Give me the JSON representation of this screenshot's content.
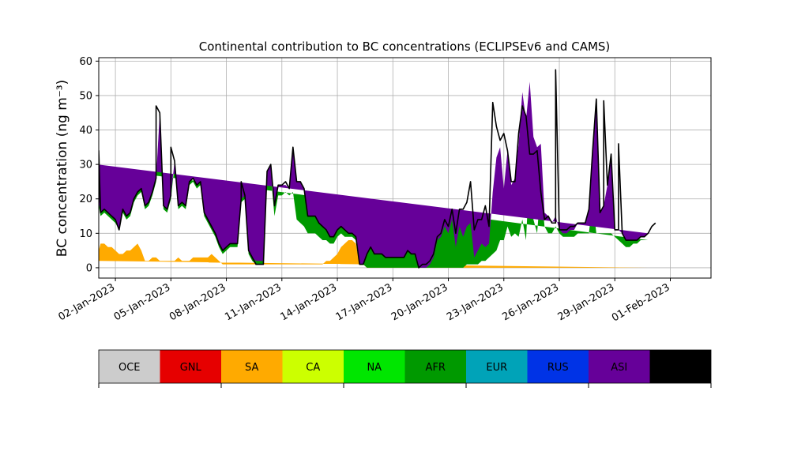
{
  "chart_data": {
    "type": "area",
    "stacked": true,
    "title": "Continental contribution to BC concentrations (ECLIPSEv6 and CAMS)",
    "ylabel": "BC concentration (ng m⁻³)",
    "xlabel": "",
    "ylim": [
      -3,
      61
    ],
    "yticks": [
      0,
      10,
      20,
      30,
      40,
      50,
      60
    ],
    "xlim_day": [
      -0.9,
      32.2
    ],
    "xtick_days": [
      0,
      3,
      6,
      9,
      12,
      15,
      18,
      21,
      24,
      27,
      30
    ],
    "xtick_labels": [
      "02-Jan-2023",
      "05-Jan-2023",
      "08-Jan-2023",
      "11-Jan-2023",
      "14-Jan-2023",
      "17-Jan-2023",
      "20-Jan-2023",
      "23-Jan-2023",
      "26-Jan-2023",
      "29-Jan-2023",
      "01-Feb-2023"
    ],
    "grid": true,
    "legend_position": "bottom",
    "legend": [
      {
        "name": "OCE",
        "color": "#cccccc"
      },
      {
        "name": "GNL",
        "color": "#e60000"
      },
      {
        "name": "SA",
        "color": "#ffaa00"
      },
      {
        "name": "CA",
        "color": "#ccff00"
      },
      {
        "name": "NA",
        "color": "#00e600"
      },
      {
        "name": "AFR",
        "color": "#009900"
      },
      {
        "name": "EUR",
        "color": "#00a3b8"
      },
      {
        "name": "RUS",
        "color": "#0033e6"
      },
      {
        "name": "ASI",
        "color": "#660099"
      },
      {
        "name": "AUS",
        "color": "#000000"
      }
    ],
    "x_day": [
      -1.0,
      -0.9,
      -0.8,
      -0.6,
      -0.4,
      -0.2,
      0.0,
      0.2,
      0.4,
      0.6,
      0.8,
      1.0,
      1.2,
      1.4,
      1.6,
      1.8,
      2.0,
      2.2,
      2.4,
      2.6,
      2.8,
      3.0,
      3.2,
      3.4,
      3.6,
      3.8,
      4.0,
      4.2,
      4.4,
      4.6,
      4.8,
      5.0,
      5.2,
      5.4,
      5.6,
      5.8,
      6.0,
      6.2,
      6.4,
      6.6,
      6.8,
      7.0,
      7.2,
      7.4,
      7.6,
      7.8,
      8.0,
      8.2,
      8.4,
      8.6,
      8.8,
      9.0,
      9.2,
      9.4,
      9.6,
      9.8,
      10.0,
      10.2,
      10.4,
      10.6,
      10.8,
      11.0,
      11.2,
      11.4,
      11.6,
      11.8,
      12.0,
      12.2,
      12.4,
      12.6,
      12.8,
      13.0,
      13.2,
      13.4,
      13.6,
      13.8,
      14.0,
      14.2,
      14.4,
      14.6,
      14.8,
      15.0,
      15.2,
      15.4,
      15.6,
      15.8,
      16.0,
      16.2,
      16.4,
      16.6,
      16.8,
      17.0,
      17.2,
      17.4,
      17.6,
      17.8,
      18.0,
      18.2,
      18.4,
      18.6,
      18.8,
      19.0,
      19.2,
      19.4,
      19.6,
      19.8,
      20.0,
      20.2,
      20.4,
      20.6,
      20.8,
      21.0,
      21.2,
      21.4,
      21.6,
      21.8,
      22.0,
      22.2,
      22.4,
      22.6,
      22.8,
      23.0,
      23.2,
      23.4,
      23.6,
      23.8,
      24.0,
      24.2,
      24.4,
      24.6,
      24.8,
      25.0,
      25.2,
      25.4,
      25.6,
      25.8,
      26.0,
      26.2,
      26.4,
      26.6,
      26.8,
      27.0,
      27.2,
      27.4,
      27.6,
      27.8,
      28.0,
      28.2,
      28.4,
      28.6,
      28.8,
      29.0,
      29.2,
      29.4,
      29.6,
      29.8,
      30.0
    ],
    "series": [
      {
        "name": "SA",
        "color": "#ffaa00",
        "values": [
          2,
          5,
          7,
          7,
          6,
          6,
          5,
          4,
          4,
          5,
          5,
          6,
          7,
          5,
          2,
          2,
          3,
          3,
          2,
          2,
          2,
          2,
          2,
          3,
          2,
          2,
          2,
          3,
          3,
          3,
          3,
          3,
          4,
          3,
          2,
          1,
          1,
          1,
          1,
          1,
          1,
          1,
          1,
          1,
          1,
          1,
          1,
          1,
          1,
          1,
          1,
          1,
          1,
          1,
          1,
          1,
          1,
          1,
          1,
          1,
          1,
          1,
          1,
          2,
          2,
          3,
          4,
          6,
          7,
          8,
          8,
          7,
          1,
          1,
          0,
          0,
          0,
          0,
          0,
          0,
          0,
          0,
          0,
          0,
          0,
          0,
          0,
          0,
          0,
          0,
          0,
          0,
          0,
          0,
          0,
          0,
          0,
          0,
          0,
          0,
          0,
          0,
          0,
          0,
          0,
          0,
          0,
          0,
          0,
          0,
          0,
          0,
          0,
          0,
          0,
          0,
          0,
          0,
          0,
          0,
          0,
          0,
          0,
          0,
          0,
          0,
          0,
          0,
          0,
          0,
          0,
          0,
          0,
          0,
          0,
          0,
          0,
          0,
          0,
          0,
          0,
          0,
          0,
          0,
          0,
          0,
          0,
          0,
          0,
          0,
          0
        ]
      },
      {
        "name": "AFR",
        "color": "#009900",
        "values": [
          27,
          13,
          8,
          9,
          9,
          8,
          8,
          7,
          12,
          9,
          10,
          13,
          14,
          17,
          15,
          16,
          18,
          22,
          42,
          15,
          14,
          18,
          28,
          14,
          16,
          15,
          22,
          22,
          20,
          21,
          12,
          10,
          7,
          6,
          4,
          3,
          4,
          5,
          5,
          5,
          18,
          19,
          3,
          1,
          0,
          0,
          0,
          25,
          26,
          14,
          20,
          20,
          21,
          20,
          21,
          13,
          12,
          11,
          9,
          9,
          9,
          8,
          7,
          6,
          5,
          4,
          5,
          4,
          2,
          1,
          1,
          1,
          0,
          0,
          0,
          0,
          0,
          0,
          0,
          0,
          0,
          0,
          0,
          0,
          0,
          0,
          0,
          0,
          0,
          0,
          0,
          0,
          0,
          0,
          0,
          0,
          0,
          0,
          0,
          0,
          0,
          1,
          1,
          1,
          1,
          2,
          2,
          3,
          4,
          5,
          8,
          8,
          12,
          9,
          10,
          9,
          14,
          8,
          30,
          14,
          10,
          24,
          12,
          10,
          10,
          12,
          10,
          9,
          9,
          9,
          9,
          10,
          10,
          10,
          10,
          20,
          10,
          10,
          10,
          10,
          10,
          9,
          8,
          7,
          6,
          6,
          7,
          7,
          8,
          8,
          8,
          9
        ]
      },
      {
        "name": "ASI",
        "color": "#660099",
        "values": [
          1,
          1,
          1,
          1,
          1,
          1,
          1,
          0,
          1,
          1,
          1,
          1,
          1,
          1,
          1,
          1,
          1,
          1,
          1,
          1,
          1,
          1,
          1,
          1,
          1,
          1,
          1,
          1,
          1,
          1,
          1,
          1,
          1,
          1,
          1,
          1,
          1,
          1,
          1,
          1,
          1,
          1,
          1,
          1,
          1,
          1,
          1,
          2,
          3,
          3,
          3,
          3,
          2,
          2,
          13,
          11,
          12,
          11,
          5,
          5,
          5,
          4,
          4,
          3,
          2,
          2,
          2,
          2,
          2,
          1,
          1,
          1,
          0,
          0,
          4,
          6,
          4,
          4,
          4,
          3,
          3,
          3,
          3,
          3,
          3,
          5,
          4,
          4,
          0,
          0,
          0,
          1,
          3,
          8,
          9,
          12,
          10,
          14,
          6,
          12,
          9,
          11,
          12,
          2,
          4,
          5,
          4,
          4,
          18,
          27,
          27,
          15,
          22,
          15,
          16,
          27,
          37,
          35,
          24,
          24,
          25,
          12,
          4,
          5,
          3,
          3,
          1,
          1,
          1,
          2,
          2,
          3,
          3,
          3,
          7,
          14,
          39,
          6,
          8,
          14,
          23,
          2,
          3,
          3,
          2,
          2,
          1,
          1,
          1,
          1,
          2,
          3,
          4
        ]
      }
    ],
    "total": [
      30,
      19,
      16,
      17,
      16,
      15,
      14,
      11,
      17,
      15,
      16,
      20,
      22,
      23,
      18,
      19,
      22,
      26,
      45,
      18,
      17,
      21,
      31,
      18,
      19,
      18,
      25,
      26,
      24,
      25,
      16,
      14,
      12,
      10,
      7,
      5,
      6,
      7,
      7,
      7,
      20,
      21,
      5,
      3,
      1,
      1,
      1,
      28,
      30,
      18,
      24,
      24,
      25,
      23,
      35,
      25,
      25,
      23,
      15,
      15,
      15,
      13,
      12,
      11,
      9,
      9,
      11,
      12,
      11,
      10,
      10,
      9,
      1,
      1,
      4,
      6,
      4,
      4,
      4,
      3,
      3,
      3,
      3,
      3,
      3,
      5,
      4,
      4,
      0,
      1,
      1,
      2,
      4,
      9,
      10,
      14,
      12,
      17,
      10,
      17,
      17,
      19,
      25,
      11,
      14,
      14,
      18,
      12,
      48,
      41,
      37,
      39,
      34,
      25,
      25,
      39,
      47,
      44,
      33,
      33,
      34,
      22,
      14,
      15,
      13,
      13,
      11,
      11,
      11,
      12,
      12,
      13,
      13,
      13,
      17,
      34,
      49,
      16,
      18,
      24,
      33,
      11,
      11,
      10,
      8,
      8,
      8,
      8,
      9,
      9,
      10,
      12,
      13
    ],
    "peaks": [
      {
        "day": -0.9,
        "value": 34
      },
      {
        "day": 2.2,
        "value": 47
      },
      {
        "day": 3.0,
        "value": 35
      },
      {
        "day": 6.8,
        "value": 25
      },
      {
        "day": 8.4,
        "value": 30
      },
      {
        "day": 23.8,
        "value": 57.5
      },
      {
        "day": 26.4,
        "value": 48.5
      },
      {
        "day": 27.2,
        "value": 36
      }
    ]
  }
}
